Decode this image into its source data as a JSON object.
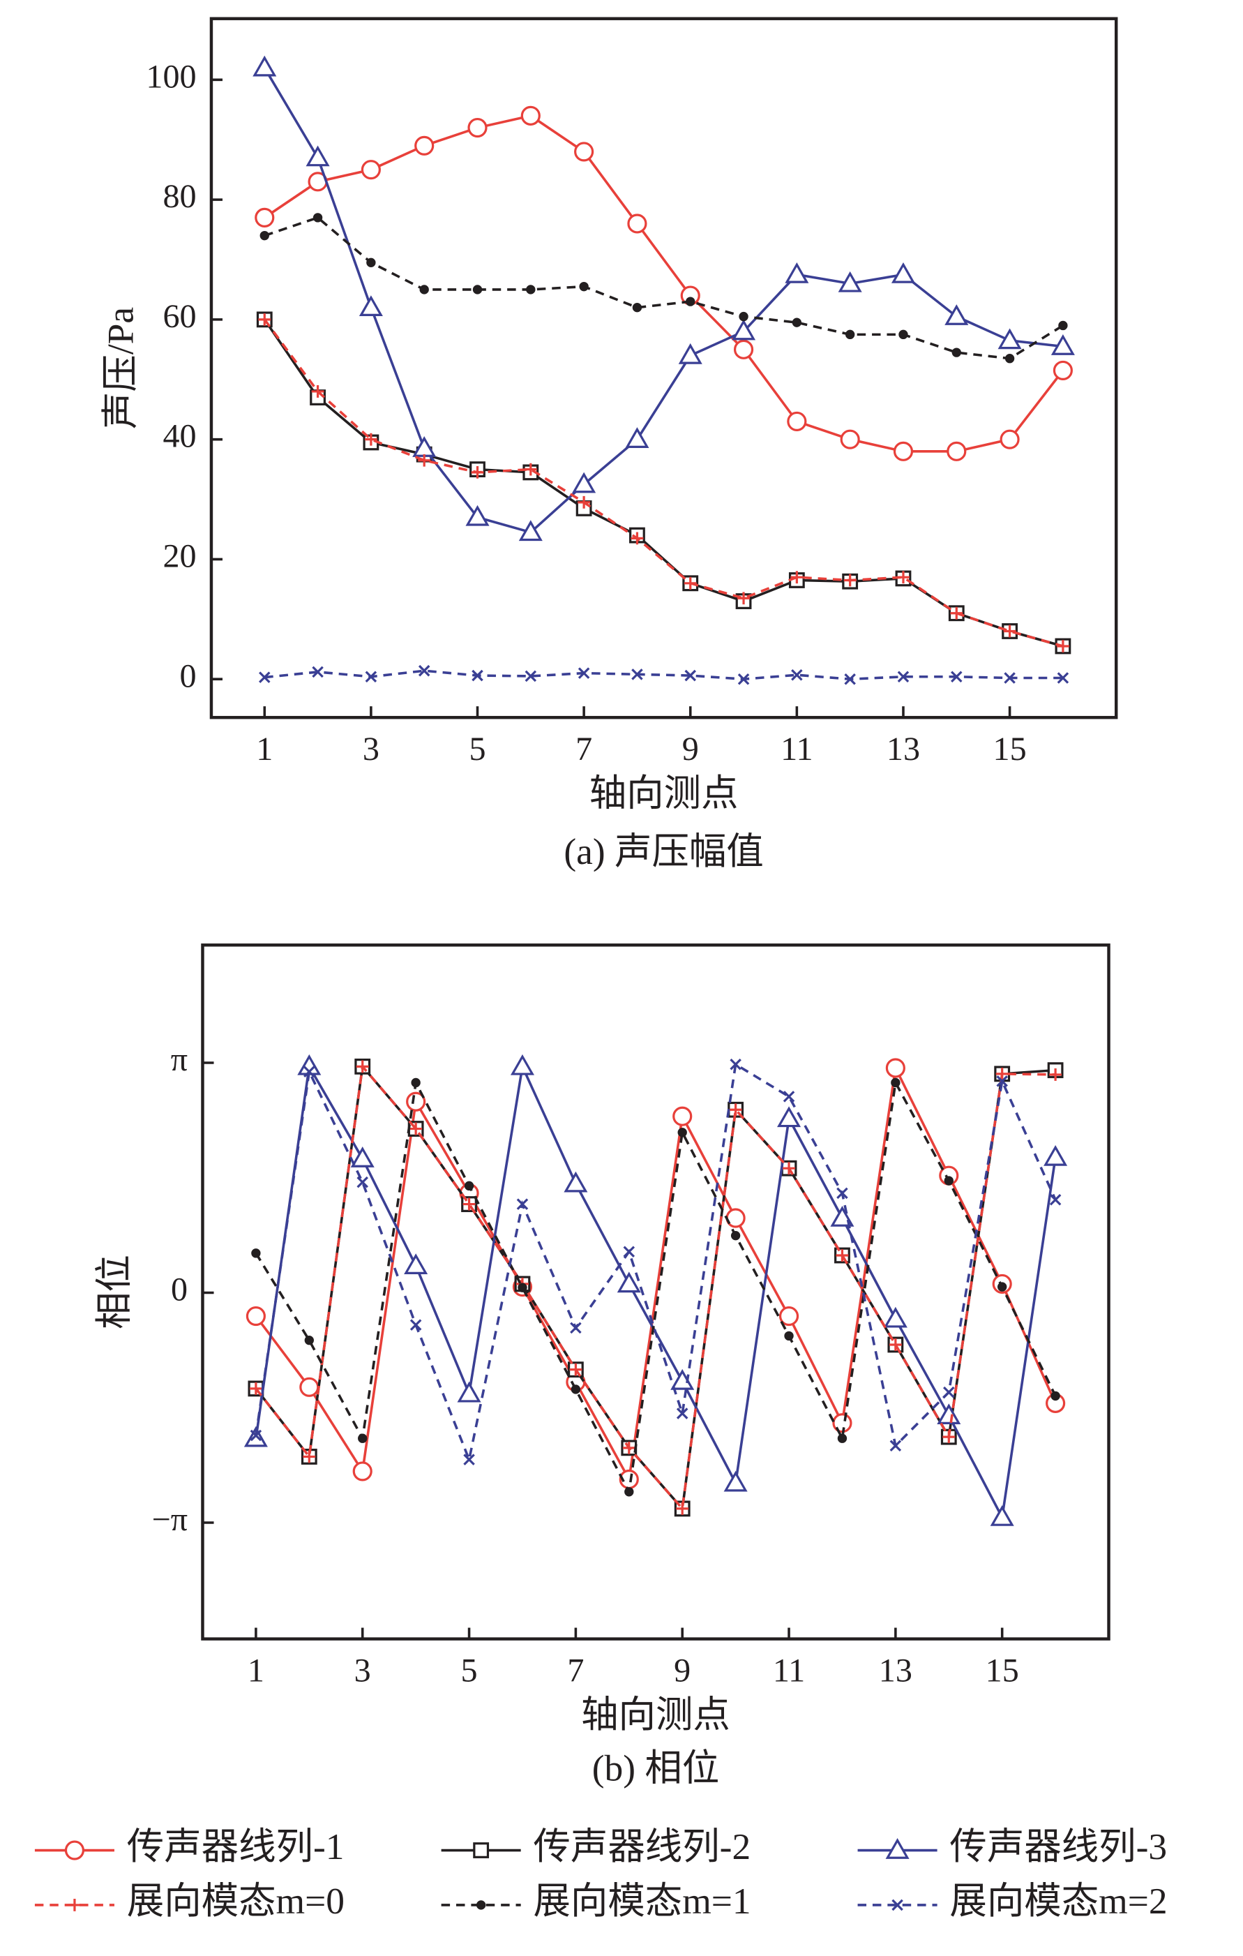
{
  "chart_data": [
    {
      "type": "line",
      "caption": "(a) 声压幅值",
      "x_label": "轴向测点",
      "y_label": "声压/Pa",
      "x": [
        1,
        2,
        3,
        4,
        5,
        6,
        7,
        8,
        9,
        10,
        11,
        12,
        13,
        14,
        15,
        16
      ],
      "xlim": [
        0,
        17
      ],
      "xticks": [
        1,
        3,
        5,
        7,
        9,
        11,
        13,
        15
      ],
      "ylim": [
        -6.4,
        110.2
      ],
      "yticks": [
        0,
        20,
        40,
        60,
        80,
        100
      ],
      "series": [
        {
          "name": "传声器线列-1",
          "color": "#e8403a",
          "marker": "circle",
          "linestyle": "solid",
          "values": [
            77,
            83,
            85,
            89,
            92,
            94,
            88,
            76,
            64,
            55,
            43,
            40,
            38,
            38,
            40,
            51.5
          ]
        },
        {
          "name": "传声器线列-2",
          "color": "#231f20",
          "marker": "square",
          "linestyle": "solid",
          "values": [
            60,
            47,
            39.5,
            37.5,
            35,
            34.5,
            28.5,
            24,
            16,
            13,
            16.5,
            16.3,
            16.8,
            11,
            8,
            5.5
          ]
        },
        {
          "name": "传声器线列-3",
          "color": "#3a3f94",
          "marker": "triangle",
          "linestyle": "solid",
          "values": [
            102,
            87,
            62,
            38.5,
            27,
            24.5,
            32.5,
            40,
            54,
            58,
            67.5,
            66,
            67.5,
            60.5,
            56.5,
            55.5
          ]
        },
        {
          "name": "展向模态m=0",
          "color": "#e8403a",
          "marker": "plus",
          "linestyle": "dashed",
          "values": [
            60,
            48,
            40,
            36.5,
            34.5,
            35,
            29.5,
            23.5,
            16,
            13.5,
            17,
            16.5,
            17,
            11,
            8,
            5.5
          ]
        },
        {
          "name": "展向模态m=1",
          "color": "#231f20",
          "marker": "dot",
          "linestyle": "dashed",
          "values": [
            74,
            77,
            69.5,
            65,
            65,
            65,
            65.5,
            62,
            63,
            60.5,
            59.5,
            57.5,
            57.5,
            54.5,
            53.5,
            59
          ]
        },
        {
          "name": "展向模态m=2",
          "color": "#3a3f94",
          "marker": "cross",
          "linestyle": "dashed",
          "values": [
            0.3,
            1.2,
            0.4,
            1.4,
            0.6,
            0.5,
            1,
            0.8,
            0.6,
            0,
            0.7,
            0,
            0.4,
            0.4,
            0.2,
            0.2
          ]
        }
      ]
    },
    {
      "type": "line",
      "caption": "(b) 相位",
      "x_label": "轴向测点",
      "y_label": "相位",
      "x": [
        1,
        2,
        3,
        4,
        5,
        6,
        7,
        8,
        9,
        10,
        11,
        12,
        13,
        14,
        15,
        16
      ],
      "xlim": [
        0,
        17
      ],
      "xticks": [
        1,
        3,
        5,
        7,
        9,
        11,
        13,
        15
      ],
      "ylim": [
        -4.73,
        4.75
      ],
      "yticks": [
        {
          "value": -3.14159,
          "label": "−π"
        },
        0,
        {
          "value": 3.14159,
          "label": "π"
        }
      ],
      "series": [
        {
          "color": "#e8403a",
          "marker": "circle",
          "linestyle": "solid",
          "values": [
            -0.32,
            -1.29,
            -2.44,
            2.61,
            1.36,
            0.08,
            -1.22,
            -2.55,
            2.41,
            1.02,
            -0.32,
            -1.78,
            3.07,
            1.6,
            0.12,
            -1.51
          ]
        },
        {
          "color": "#231f20",
          "marker": "square",
          "linestyle": "solid",
          "values": [
            -1.31,
            -2.24,
            3.09,
            2.24,
            1.21,
            0.12,
            -1.05,
            -2.12,
            -2.95,
            2.5,
            1.7,
            0.51,
            -0.71,
            -1.97,
            2.99,
            3.04
          ]
        },
        {
          "color": "#3a3f94",
          "marker": "triangle",
          "linestyle": "solid",
          "values": [
            -1.99,
            3.09,
            1.83,
            0.37,
            -1.38,
            3.09,
            1.49,
            0.12,
            -1.21,
            -2.6,
            2.38,
            1.02,
            -0.36,
            -1.68,
            -3.07,
            1.85
          ]
        },
        {
          "color": "#e8403a",
          "marker": "plus",
          "linestyle": "dashed",
          "values": [
            -1.31,
            -2.24,
            3.09,
            2.24,
            1.21,
            0.12,
            -1.05,
            -2.12,
            -2.95,
            2.5,
            1.7,
            0.51,
            -0.71,
            -1.97,
            2.99,
            2.98
          ]
        },
        {
          "color": "#231f20",
          "marker": "dot",
          "linestyle": "dashed",
          "values": [
            0.54,
            -0.65,
            -1.99,
            2.87,
            1.46,
            0.07,
            -1.32,
            -2.72,
            2.19,
            0.78,
            -0.59,
            -1.99,
            2.87,
            1.53,
            0.08,
            -1.41
          ]
        },
        {
          "color": "#3a3f94",
          "marker": "cross",
          "linestyle": "dashed",
          "values": [
            -1.95,
            3.02,
            1.51,
            -0.44,
            -2.28,
            1.21,
            -0.48,
            0.56,
            -1.65,
            3.12,
            2.68,
            1.36,
            -2.09,
            -1.36,
            2.89,
            1.27
          ]
        }
      ]
    }
  ]
}
